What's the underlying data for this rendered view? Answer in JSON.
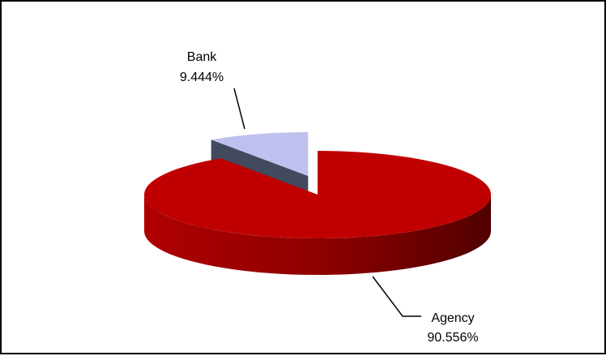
{
  "chart_data": {
    "type": "pie",
    "style": "3d-exploded",
    "slices": [
      {
        "label": "Agency",
        "value_label": "90.556%",
        "value": 90.556,
        "color": "#c00000",
        "dark_color": "#500000",
        "side_color": "#b00000"
      },
      {
        "label": "Bank",
        "value_label": "9.444%",
        "value": 9.444,
        "color": "#c0c0ee",
        "dark_color": "#444a5e",
        "side_color": "#7c7f98"
      }
    ],
    "legend": "none"
  }
}
